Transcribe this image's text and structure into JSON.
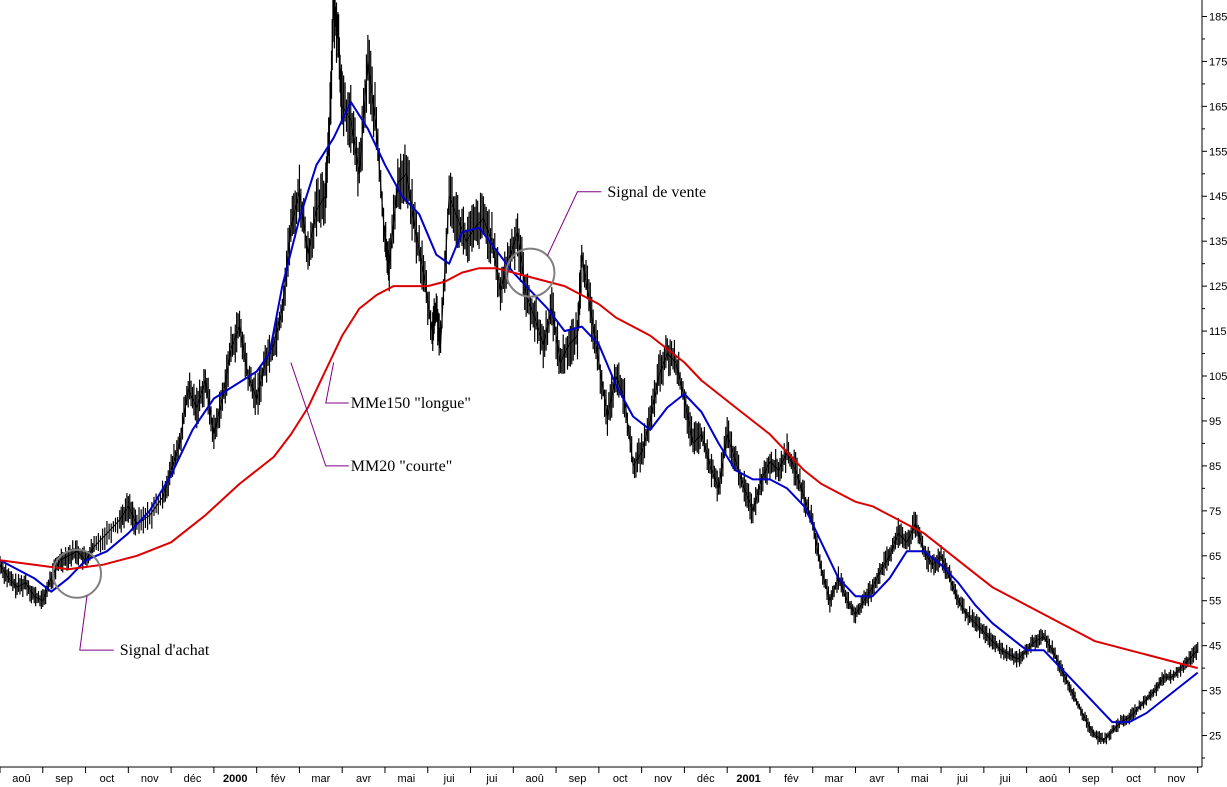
{
  "chart_data": {
    "type": "line",
    "title": "",
    "xlabel": "",
    "ylabel": "",
    "ylim": [
      18,
      188
    ],
    "y_ticks": [
      25,
      35,
      45,
      55,
      65,
      75,
      85,
      95,
      105,
      115,
      125,
      135,
      145,
      155,
      165,
      175,
      185
    ],
    "y_axis_side": "right",
    "grid": false,
    "x_months": [
      {
        "label": "aoû",
        "t": 0.5
      },
      {
        "label": "sep",
        "t": 1.5
      },
      {
        "label": "oct",
        "t": 2.5
      },
      {
        "label": "nov",
        "t": 3.5
      },
      {
        "label": "déc",
        "t": 4.5
      },
      {
        "label": "2000",
        "t": 5.5,
        "bold": true
      },
      {
        "label": "fév",
        "t": 6.5
      },
      {
        "label": "mar",
        "t": 7.5
      },
      {
        "label": "avr",
        "t": 8.5
      },
      {
        "label": "mai",
        "t": 9.5
      },
      {
        "label": "jui",
        "t": 10.5
      },
      {
        "label": "jui",
        "t": 11.5
      },
      {
        "label": "aoû",
        "t": 12.5
      },
      {
        "label": "sep",
        "t": 13.5
      },
      {
        "label": "oct",
        "t": 14.5
      },
      {
        "label": "nov",
        "t": 15.5
      },
      {
        "label": "déc",
        "t": 16.5
      },
      {
        "label": "2001",
        "t": 17.5,
        "bold": true
      },
      {
        "label": "fév",
        "t": 18.5
      },
      {
        "label": "mar",
        "t": 19.5
      },
      {
        "label": "avr",
        "t": 20.5
      },
      {
        "label": "mai",
        "t": 21.5
      },
      {
        "label": "jui",
        "t": 22.5
      },
      {
        "label": "jui",
        "t": 23.5
      },
      {
        "label": "aoû",
        "t": 24.5
      },
      {
        "label": "sep",
        "t": 25.5
      },
      {
        "label": "oct",
        "t": 26.5
      },
      {
        "label": "nov",
        "t": 27.5
      }
    ],
    "series": [
      {
        "role": "price",
        "color": "#000000",
        "points": [
          [
            0,
            63
          ],
          [
            0.2,
            60
          ],
          [
            0.4,
            58
          ],
          [
            0.6,
            59
          ],
          [
            0.8,
            56
          ],
          [
            1.0,
            55
          ],
          [
            1.2,
            60
          ],
          [
            1.4,
            64
          ],
          [
            1.6,
            65
          ],
          [
            1.8,
            66
          ],
          [
            2.0,
            64
          ],
          [
            2.2,
            67
          ],
          [
            2.5,
            70
          ],
          [
            2.8,
            73
          ],
          [
            3.0,
            76
          ],
          [
            3.2,
            72
          ],
          [
            3.5,
            74
          ],
          [
            3.8,
            78
          ],
          [
            4.0,
            84
          ],
          [
            4.2,
            90
          ],
          [
            4.4,
            102
          ],
          [
            4.6,
            98
          ],
          [
            4.8,
            104
          ],
          [
            5.0,
            92
          ],
          [
            5.2,
            100
          ],
          [
            5.4,
            111
          ],
          [
            5.6,
            116
          ],
          [
            5.8,
            105
          ],
          [
            6.0,
            100
          ],
          [
            6.2,
            108
          ],
          [
            6.4,
            112
          ],
          [
            6.6,
            120
          ],
          [
            6.8,
            138
          ],
          [
            7.0,
            146
          ],
          [
            7.2,
            132
          ],
          [
            7.4,
            142
          ],
          [
            7.6,
            145
          ],
          [
            7.7,
            160
          ],
          [
            7.8,
            187
          ],
          [
            7.9,
            182
          ],
          [
            8.0,
            165
          ],
          [
            8.2,
            162
          ],
          [
            8.4,
            150
          ],
          [
            8.6,
            175
          ],
          [
            8.8,
            160
          ],
          [
            9.0,
            135
          ],
          [
            9.1,
            130
          ],
          [
            9.3,
            148
          ],
          [
            9.5,
            150
          ],
          [
            9.7,
            138
          ],
          [
            9.9,
            128
          ],
          [
            10.1,
            115
          ],
          [
            10.2,
            120
          ],
          [
            10.3,
            112
          ],
          [
            10.5,
            145
          ],
          [
            10.7,
            140
          ],
          [
            10.9,
            135
          ],
          [
            11.1,
            138
          ],
          [
            11.3,
            140
          ],
          [
            11.5,
            135
          ],
          [
            11.7,
            124
          ],
          [
            11.9,
            131
          ],
          [
            12.1,
            137
          ],
          [
            12.3,
            123
          ],
          [
            12.5,
            118
          ],
          [
            12.7,
            112
          ],
          [
            12.9,
            120
          ],
          [
            13.1,
            108
          ],
          [
            13.3,
            112
          ],
          [
            13.5,
            114
          ],
          [
            13.6,
            132
          ],
          [
            13.8,
            120
          ],
          [
            14.0,
            108
          ],
          [
            14.2,
            96
          ],
          [
            14.4,
            105
          ],
          [
            14.6,
            100
          ],
          [
            14.8,
            85
          ],
          [
            15.0,
            88
          ],
          [
            15.2,
            95
          ],
          [
            15.4,
            105
          ],
          [
            15.6,
            110
          ],
          [
            15.8,
            108
          ],
          [
            16.0,
            100
          ],
          [
            16.2,
            90
          ],
          [
            16.4,
            92
          ],
          [
            16.6,
            85
          ],
          [
            16.8,
            80
          ],
          [
            17.0,
            92
          ],
          [
            17.2,
            86
          ],
          [
            17.4,
            80
          ],
          [
            17.6,
            75
          ],
          [
            17.8,
            82
          ],
          [
            18.0,
            86
          ],
          [
            18.2,
            84
          ],
          [
            18.4,
            88
          ],
          [
            18.6,
            84
          ],
          [
            18.8,
            78
          ],
          [
            19.0,
            72
          ],
          [
            19.2,
            62
          ],
          [
            19.4,
            55
          ],
          [
            19.6,
            60
          ],
          [
            19.8,
            55
          ],
          [
            20.0,
            52
          ],
          [
            20.2,
            55
          ],
          [
            20.4,
            58
          ],
          [
            20.6,
            62
          ],
          [
            20.8,
            65
          ],
          [
            21.0,
            70
          ],
          [
            21.2,
            68
          ],
          [
            21.4,
            72
          ],
          [
            21.6,
            66
          ],
          [
            21.8,
            63
          ],
          [
            22.0,
            65
          ],
          [
            22.2,
            60
          ],
          [
            22.4,
            55
          ],
          [
            22.6,
            52
          ],
          [
            22.8,
            50
          ],
          [
            23.0,
            48
          ],
          [
            23.2,
            46
          ],
          [
            23.4,
            44
          ],
          [
            23.6,
            43
          ],
          [
            23.8,
            42
          ],
          [
            24.0,
            44
          ],
          [
            24.2,
            46
          ],
          [
            24.4,
            47
          ],
          [
            24.6,
            44
          ],
          [
            24.8,
            40
          ],
          [
            25.0,
            36
          ],
          [
            25.2,
            32
          ],
          [
            25.4,
            28
          ],
          [
            25.6,
            25
          ],
          [
            25.8,
            24
          ],
          [
            26.0,
            26
          ],
          [
            26.2,
            28
          ],
          [
            26.4,
            29
          ],
          [
            26.6,
            31
          ],
          [
            26.8,
            33
          ],
          [
            27.0,
            35
          ],
          [
            27.2,
            38
          ],
          [
            27.4,
            38
          ],
          [
            27.6,
            40
          ],
          [
            27.8,
            42
          ],
          [
            28.0,
            44
          ]
        ]
      },
      {
        "name": "MM20 \"courte\"",
        "color": "#0000cc",
        "points": [
          [
            0,
            64
          ],
          [
            0.4,
            62
          ],
          [
            0.8,
            60
          ],
          [
            1.2,
            57
          ],
          [
            1.6,
            60
          ],
          [
            2.0,
            64
          ],
          [
            2.5,
            66
          ],
          [
            3.0,
            70
          ],
          [
            3.5,
            75
          ],
          [
            4.0,
            83
          ],
          [
            4.5,
            93
          ],
          [
            5.0,
            100
          ],
          [
            5.5,
            103
          ],
          [
            6.0,
            106
          ],
          [
            6.3,
            110
          ],
          [
            6.6,
            125
          ],
          [
            7.0,
            140
          ],
          [
            7.4,
            152
          ],
          [
            7.8,
            158
          ],
          [
            8.2,
            166
          ],
          [
            8.6,
            160
          ],
          [
            9.0,
            152
          ],
          [
            9.4,
            145
          ],
          [
            9.8,
            141
          ],
          [
            10.2,
            132
          ],
          [
            10.5,
            130
          ],
          [
            10.8,
            137
          ],
          [
            11.2,
            138
          ],
          [
            11.6,
            133
          ],
          [
            12.0,
            128
          ],
          [
            12.4,
            124
          ],
          [
            12.8,
            120
          ],
          [
            13.2,
            115
          ],
          [
            13.6,
            116
          ],
          [
            14.0,
            112
          ],
          [
            14.4,
            103
          ],
          [
            14.8,
            96
          ],
          [
            15.2,
            93
          ],
          [
            15.6,
            98
          ],
          [
            16.0,
            101
          ],
          [
            16.4,
            97
          ],
          [
            16.8,
            90
          ],
          [
            17.2,
            84
          ],
          [
            17.6,
            82
          ],
          [
            18.0,
            82
          ],
          [
            18.4,
            80
          ],
          [
            18.8,
            76
          ],
          [
            19.2,
            68
          ],
          [
            19.6,
            60
          ],
          [
            20.0,
            56
          ],
          [
            20.4,
            56
          ],
          [
            20.8,
            60
          ],
          [
            21.2,
            66
          ],
          [
            21.6,
            66
          ],
          [
            22.0,
            63
          ],
          [
            22.4,
            59
          ],
          [
            22.8,
            54
          ],
          [
            23.2,
            50
          ],
          [
            23.6,
            47
          ],
          [
            24.0,
            44
          ],
          [
            24.4,
            44
          ],
          [
            24.8,
            40
          ],
          [
            25.2,
            36
          ],
          [
            25.6,
            32
          ],
          [
            26.0,
            28
          ],
          [
            26.4,
            28
          ],
          [
            26.8,
            30
          ],
          [
            27.2,
            33
          ],
          [
            27.6,
            36
          ],
          [
            28.0,
            39
          ]
        ]
      },
      {
        "name": "MMe150 \"longue\"",
        "color": "#dd0000",
        "points": [
          [
            0,
            64
          ],
          [
            0.8,
            63
          ],
          [
            1.6,
            62
          ],
          [
            2.4,
            63
          ],
          [
            3.2,
            65
          ],
          [
            4.0,
            68
          ],
          [
            4.8,
            74
          ],
          [
            5.6,
            81
          ],
          [
            6.4,
            87
          ],
          [
            6.8,
            92
          ],
          [
            7.2,
            98
          ],
          [
            7.6,
            106
          ],
          [
            8.0,
            114
          ],
          [
            8.4,
            120
          ],
          [
            8.8,
            123
          ],
          [
            9.2,
            125
          ],
          [
            9.6,
            125
          ],
          [
            10.0,
            125
          ],
          [
            10.4,
            126
          ],
          [
            10.8,
            128
          ],
          [
            11.2,
            129
          ],
          [
            11.6,
            129
          ],
          [
            12.0,
            128
          ],
          [
            12.4,
            127
          ],
          [
            12.8,
            126
          ],
          [
            13.2,
            125
          ],
          [
            13.6,
            123
          ],
          [
            14.0,
            121
          ],
          [
            14.4,
            118
          ],
          [
            14.8,
            116
          ],
          [
            15.2,
            114
          ],
          [
            15.6,
            111
          ],
          [
            16.0,
            108
          ],
          [
            16.4,
            104
          ],
          [
            16.8,
            101
          ],
          [
            17.2,
            98
          ],
          [
            17.6,
            95
          ],
          [
            18.0,
            92
          ],
          [
            18.4,
            88
          ],
          [
            18.8,
            84
          ],
          [
            19.2,
            81
          ],
          [
            19.6,
            79
          ],
          [
            20.0,
            77
          ],
          [
            20.4,
            76
          ],
          [
            20.8,
            74
          ],
          [
            21.2,
            72
          ],
          [
            21.6,
            70
          ],
          [
            22.0,
            67
          ],
          [
            22.4,
            64
          ],
          [
            22.8,
            61
          ],
          [
            23.2,
            58
          ],
          [
            23.6,
            56
          ],
          [
            24.0,
            54
          ],
          [
            24.4,
            52
          ],
          [
            24.8,
            50
          ],
          [
            25.2,
            48
          ],
          [
            25.6,
            46
          ],
          [
            26.0,
            45
          ],
          [
            26.4,
            44
          ],
          [
            26.8,
            43
          ],
          [
            27.2,
            42
          ],
          [
            27.6,
            41
          ],
          [
            28.0,
            40
          ]
        ]
      }
    ],
    "annotations": [
      {
        "label": "Signal de vente",
        "circle": [
          12.4,
          128
        ],
        "anchor": [
          14.2,
          146
        ]
      },
      {
        "label": "MMe150 \"longue\"",
        "circle": null,
        "anchor": [
          8.2,
          99
        ],
        "target": [
          7.8,
          108
        ]
      },
      {
        "label": "MM20 \"courte\"",
        "circle": null,
        "anchor": [
          8.2,
          85
        ],
        "target": [
          6.8,
          108
        ]
      },
      {
        "label": "Signal d'achat",
        "circle": [
          1.8,
          61
        ],
        "anchor": [
          2.8,
          44
        ],
        "target": [
          2.2,
          56
        ]
      }
    ]
  }
}
